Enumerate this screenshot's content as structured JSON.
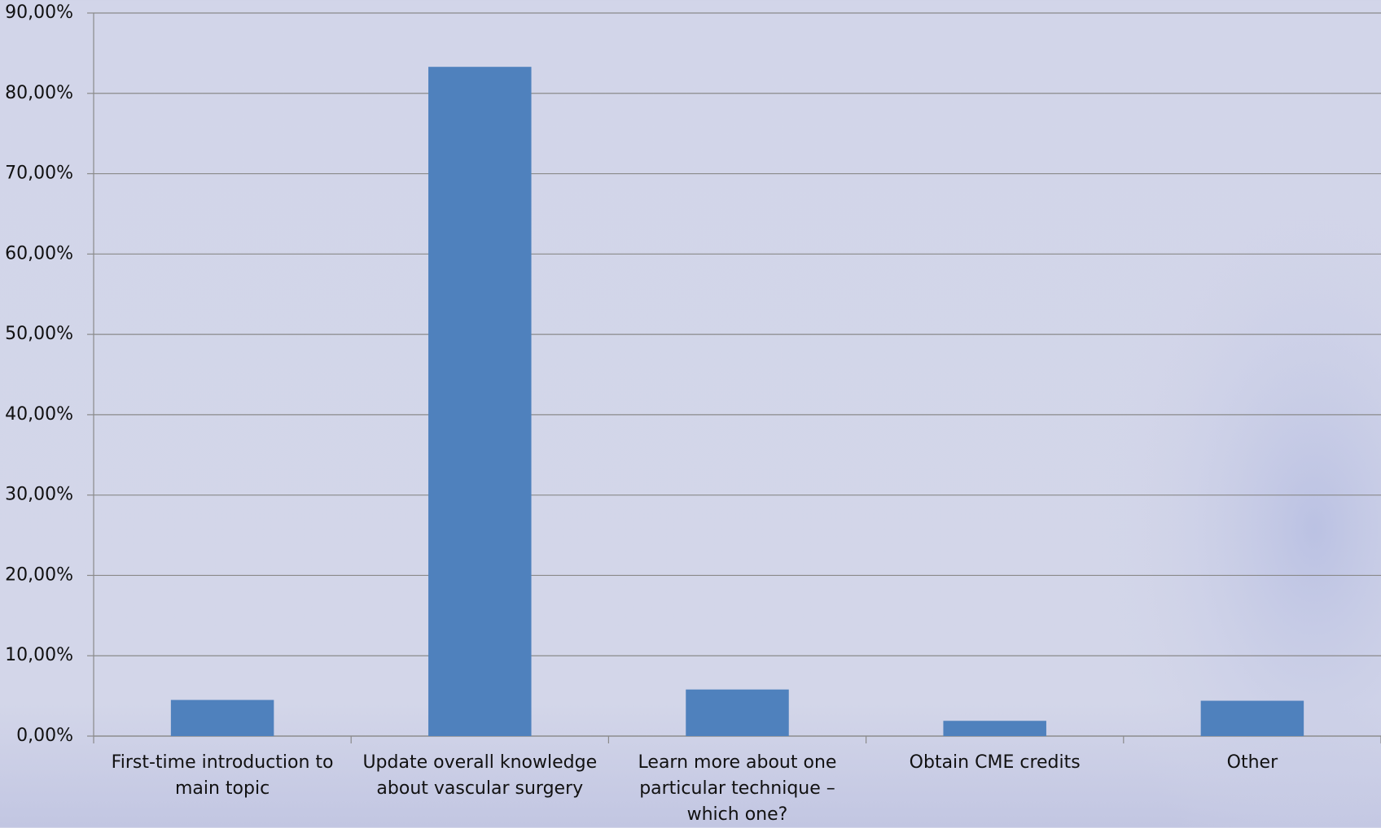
{
  "chart_data": {
    "type": "bar",
    "categories": [
      "First-time introduction to main topic",
      "Update overall knowledge about vascular surgery",
      "Learn more about one particular technique – which one?",
      "Obtain CME credits",
      "Other"
    ],
    "values": [
      4.5,
      83.3,
      5.8,
      1.9,
      4.4
    ],
    "color": "#4f81bd",
    "ylim": [
      0,
      90
    ],
    "yticks": [
      {
        "value": 0,
        "label": "0,00%"
      },
      {
        "value": 10,
        "label": "10,00%"
      },
      {
        "value": 20,
        "label": "20,00%"
      },
      {
        "value": 30,
        "label": "30,00%"
      },
      {
        "value": 40,
        "label": "40,00%"
      },
      {
        "value": 50,
        "label": "50,00%"
      },
      {
        "value": 60,
        "label": "60,00%"
      },
      {
        "value": 70,
        "label": "70,00%"
      },
      {
        "value": 80,
        "label": "80,00%"
      },
      {
        "value": 90,
        "label": "90,00%"
      }
    ],
    "grid": true
  }
}
